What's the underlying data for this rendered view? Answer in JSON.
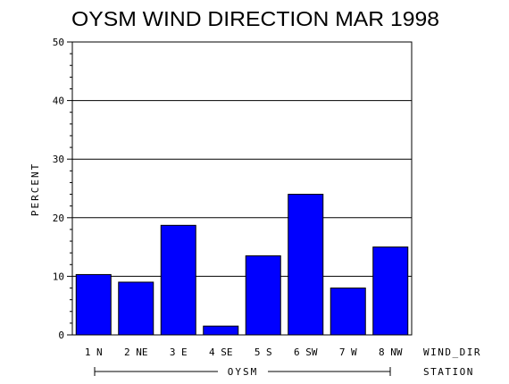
{
  "chart_data": {
    "type": "bar",
    "title": "OYSM WIND DIRECTION MAR 1998",
    "ylabel": "PERCENT",
    "xlabel": "WIND_DIR",
    "group_label": "STATION",
    "group_name": "OYSM",
    "categories": [
      "1 N",
      "2 NE",
      "3 E",
      "4 SE",
      "5 S",
      "6 SW",
      "7 W",
      "8 NW"
    ],
    "values": [
      10.3,
      9.0,
      18.7,
      1.5,
      13.5,
      24.0,
      8.0,
      15.0
    ],
    "ylim": [
      0,
      50
    ],
    "yticks": [
      0,
      10,
      20,
      30,
      40,
      50
    ],
    "grid": true,
    "bar_color": "#0000ff"
  }
}
